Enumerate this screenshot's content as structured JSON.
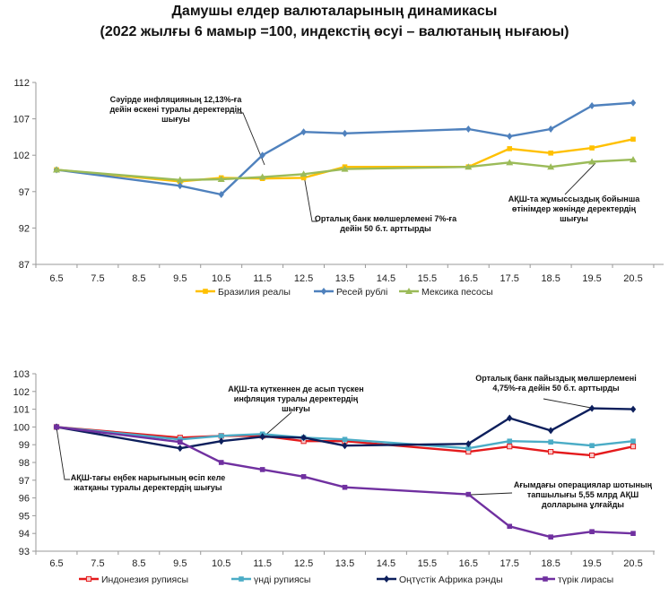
{
  "title_line1": "Дамушы елдер валюталарының динамикасы",
  "title_line2": "(2022 жылғы 6 мамыр =100, индекстің өсуі – валютаның нығаюы)",
  "chart_data": [
    {
      "type": "line",
      "title": "",
      "xlabel": "",
      "ylabel": "",
      "categories": [
        "6.5",
        "7.5",
        "8.5",
        "9.5",
        "10.5",
        "11.5",
        "12.5",
        "13.5",
        "14.5",
        "15.5",
        "16.5",
        "17.5",
        "18.5",
        "19.5",
        "20.5"
      ],
      "ylim": [
        87,
        112
      ],
      "yticks": [
        87,
        92,
        97,
        102,
        107,
        112
      ],
      "grid": false,
      "legend_position": "bottom",
      "series": [
        {
          "name": "Бразилия реалы",
          "color": "#FFC000",
          "marker": "square",
          "values": [
            100,
            null,
            null,
            98.4,
            98.9,
            98.8,
            98.9,
            100.4,
            null,
            null,
            100.4,
            102.9,
            102.3,
            103.0,
            104.2
          ]
        },
        {
          "name": "Ресей рублі",
          "color": "#4F81BD",
          "marker": "diamond",
          "values": [
            100,
            null,
            null,
            97.8,
            96.6,
            102.0,
            105.2,
            105.0,
            null,
            null,
            105.6,
            104.6,
            105.6,
            108.8,
            109.2
          ]
        },
        {
          "name": "Мексика песосы",
          "color": "#9BBB59",
          "marker": "triangle",
          "values": [
            100,
            null,
            null,
            98.6,
            98.7,
            99.0,
            99.4,
            100.1,
            null,
            null,
            100.4,
            101.0,
            100.4,
            101.1,
            101.4
          ]
        }
      ],
      "annotations": [
        {
          "lines": [
            "Сәуірде инфляцияның 12,13%-ға",
            "дейін өскені туралы деректердің",
            "шығуы"
          ],
          "x": "11.5",
          "series": "Мексика песосы"
        },
        {
          "lines": [
            "Орталық банк мөлшерлемені 7%-ға",
            "дейін 50 б.т. арттырды"
          ],
          "x": "12.5",
          "series": "Мексика песосы"
        },
        {
          "lines": [
            "АҚШ-та жұмыссыздық бойынша",
            "өтінімдер жөнінде деректердің",
            "шығуы"
          ],
          "x": "19.5",
          "series": "Мексика песосы"
        }
      ]
    },
    {
      "type": "line",
      "title": "",
      "xlabel": "",
      "ylabel": "",
      "categories": [
        "6.5",
        "7.5",
        "8.5",
        "9.5",
        "10.5",
        "11.5",
        "12.5",
        "13.5",
        "14.5",
        "15.5",
        "16.5",
        "17.5",
        "18.5",
        "19.5",
        "20.5"
      ],
      "ylim": [
        93,
        103
      ],
      "yticks": [
        93,
        94,
        95,
        96,
        97,
        98,
        99,
        100,
        101,
        102,
        103
      ],
      "grid": false,
      "legend_position": "bottom",
      "series": [
        {
          "name": "Индонезия рупиясы",
          "color": "#E41A1C",
          "marker": "square-open",
          "values": [
            100,
            null,
            null,
            99.4,
            99.5,
            99.5,
            99.2,
            99.2,
            null,
            null,
            98.6,
            98.9,
            98.6,
            98.4,
            98.9
          ]
        },
        {
          "name": "үнді рупиясы",
          "color": "#4BACC6",
          "marker": "square",
          "values": [
            100,
            null,
            null,
            99.3,
            99.5,
            99.6,
            99.4,
            99.3,
            null,
            null,
            98.8,
            99.2,
            99.15,
            98.95,
            99.2
          ]
        },
        {
          "name": "Оңтүстік Африка рэнды",
          "color": "#0D1F5C",
          "marker": "diamond",
          "values": [
            100,
            null,
            null,
            98.8,
            99.2,
            99.45,
            99.4,
            98.95,
            null,
            null,
            99.05,
            100.5,
            99.8,
            101.05,
            101.0
          ]
        },
        {
          "name": "түрік лирасы",
          "color": "#7030A0",
          "marker": "square",
          "values": [
            100,
            null,
            null,
            99.15,
            98.0,
            97.6,
            97.2,
            96.6,
            null,
            null,
            96.2,
            94.4,
            93.8,
            94.1,
            94.0
          ]
        }
      ],
      "annotations": [
        {
          "lines": [
            "АҚШ-та күткеннен де асып түскен",
            "инфляция туралы деректердің",
            "шығуы"
          ],
          "x": "11.5",
          "series": "Оңтүстік Африка рэнды"
        },
        {
          "lines": [
            "Орталық банк пайыздық мөлшерлемені",
            "4,75%-ға дейін 50 б.т. арттырды"
          ],
          "x": "19.5",
          "series": "Оңтүстік Африка рэнды"
        },
        {
          "lines": [
            "АҚШ-тағы еңбек нарығының өсіп келе",
            "жатқаны туралы деректердің шығуы"
          ],
          "x": "6.5",
          "series": "Оңтүстік Африка рэнды"
        },
        {
          "lines": [
            "Ағымдағы операциялар шотының",
            "тапшылығы 5,55 млрд АҚШ",
            "долларына ұлғайды"
          ],
          "x": "16.5",
          "series": "түрік лирасы"
        }
      ]
    }
  ]
}
